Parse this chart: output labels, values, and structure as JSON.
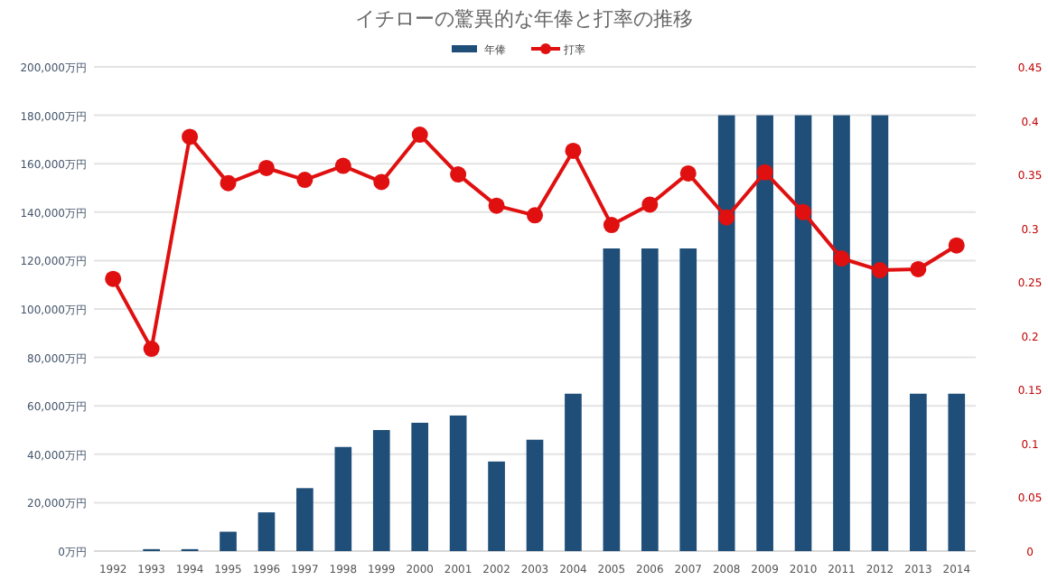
{
  "chart_data": {
    "type": "bar",
    "title": "イチローの驚異的な年俸と打率の推移",
    "categories": [
      "1992",
      "1993",
      "1994",
      "1995",
      "1996",
      "1997",
      "1998",
      "1999",
      "2000",
      "2001",
      "2002",
      "2003",
      "2004",
      "2005",
      "2006",
      "2007",
      "2008",
      "2009",
      "2010",
      "2011",
      "2012",
      "2013",
      "2014"
    ],
    "series": [
      {
        "name": "年俸",
        "color": "#1f4e79",
        "values": [
          0,
          800,
          800,
          8000,
          16000,
          26000,
          43000,
          50000,
          53000,
          56000,
          37000,
          46000,
          65000,
          125000,
          125000,
          125000,
          180000,
          180000,
          180000,
          180000,
          180000,
          65000,
          65000
        ]
      },
      {
        "name": "打率",
        "type": "line",
        "axis": "y2",
        "color": "#e01010",
        "marker": "circle",
        "values": [
          0.253,
          0.188,
          0.385,
          0.342,
          0.356,
          0.345,
          0.358,
          0.343,
          0.387,
          0.35,
          0.321,
          0.312,
          0.372,
          0.303,
          0.322,
          0.351,
          0.31,
          0.352,
          0.315,
          0.272,
          0.261,
          0.262,
          0.284
        ]
      }
    ],
    "ylim": [
      0,
      200000
    ],
    "yticks": [
      {
        "value": 0,
        "label": "0万円"
      },
      {
        "value": 20000,
        "label": "20,000万円"
      },
      {
        "value": 40000,
        "label": "40,000万円"
      },
      {
        "value": 60000,
        "label": "60,000万円"
      },
      {
        "value": 80000,
        "label": "80,000万円"
      },
      {
        "value": 100000,
        "label": "100,000万円"
      },
      {
        "value": 120000,
        "label": "120,000万円"
      },
      {
        "value": 140000,
        "label": "140,000万円"
      },
      {
        "value": 160000,
        "label": "160,000万円"
      },
      {
        "value": 180000,
        "label": "180,000万円"
      },
      {
        "value": 200000,
        "label": "200,000万円"
      }
    ],
    "y2lim": [
      0,
      0.45
    ],
    "y2ticks": [
      0,
      0.05,
      0.1,
      0.15,
      0.2,
      0.25,
      0.3,
      0.35,
      0.4,
      0.45
    ],
    "grid": "y",
    "legend": "top"
  }
}
